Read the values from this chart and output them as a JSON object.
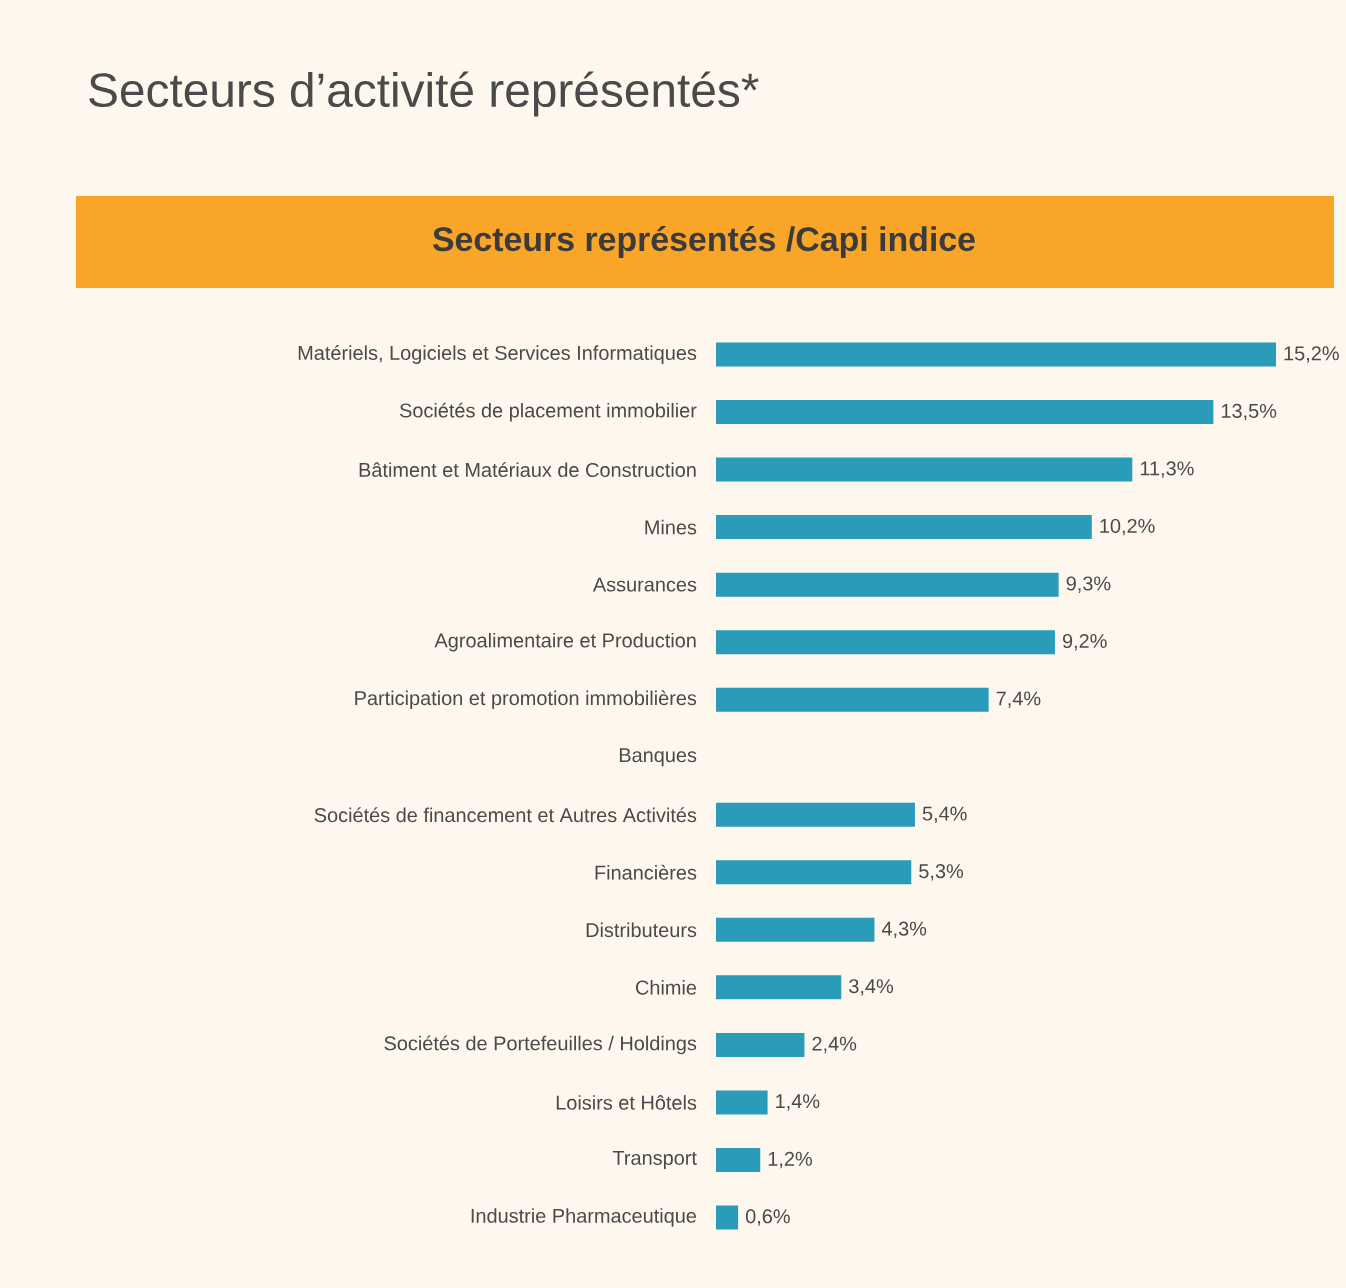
{
  "chart_data": {
    "type": "bar",
    "orientation": "horizontal",
    "title": "Secteurs d’activité représentés*",
    "subtitle": "Secteurs représentés /Capi indice",
    "categories": [
      "Matériels, Logiciels et Services Informatiques",
      "Sociétés de placement immobilier",
      "Bâtiment et Matériaux de Construction",
      "Mines",
      "Assurances",
      "Agroalimentaire et Production",
      "Participation et promotion immobilières",
      "Banques",
      "Sociétés de financement et Autres Activités",
      "Financières",
      "Distributeurs",
      "Chimie",
      "Sociétés de Portefeuilles / Holdings",
      "Loisirs et Hôtels",
      "Transport",
      "Industrie Pharmaceutique"
    ],
    "values": [
      15.2,
      13.5,
      11.3,
      10.2,
      9.3,
      9.2,
      7.4,
      null,
      5.4,
      5.3,
      4.3,
      3.4,
      2.4,
      1.4,
      1.2,
      0.6
    ],
    "value_labels": [
      "15,2%",
      "13,5%",
      "11,3%",
      "10,2%",
      "9,3%",
      "9,2%",
      "7,4%",
      null,
      "5,4%",
      "5,3%",
      "4,3%",
      "3,4%",
      "2,4%",
      "1,4%",
      "1,2%",
      "0,6%"
    ],
    "color": "#2a9bb8"
  }
}
